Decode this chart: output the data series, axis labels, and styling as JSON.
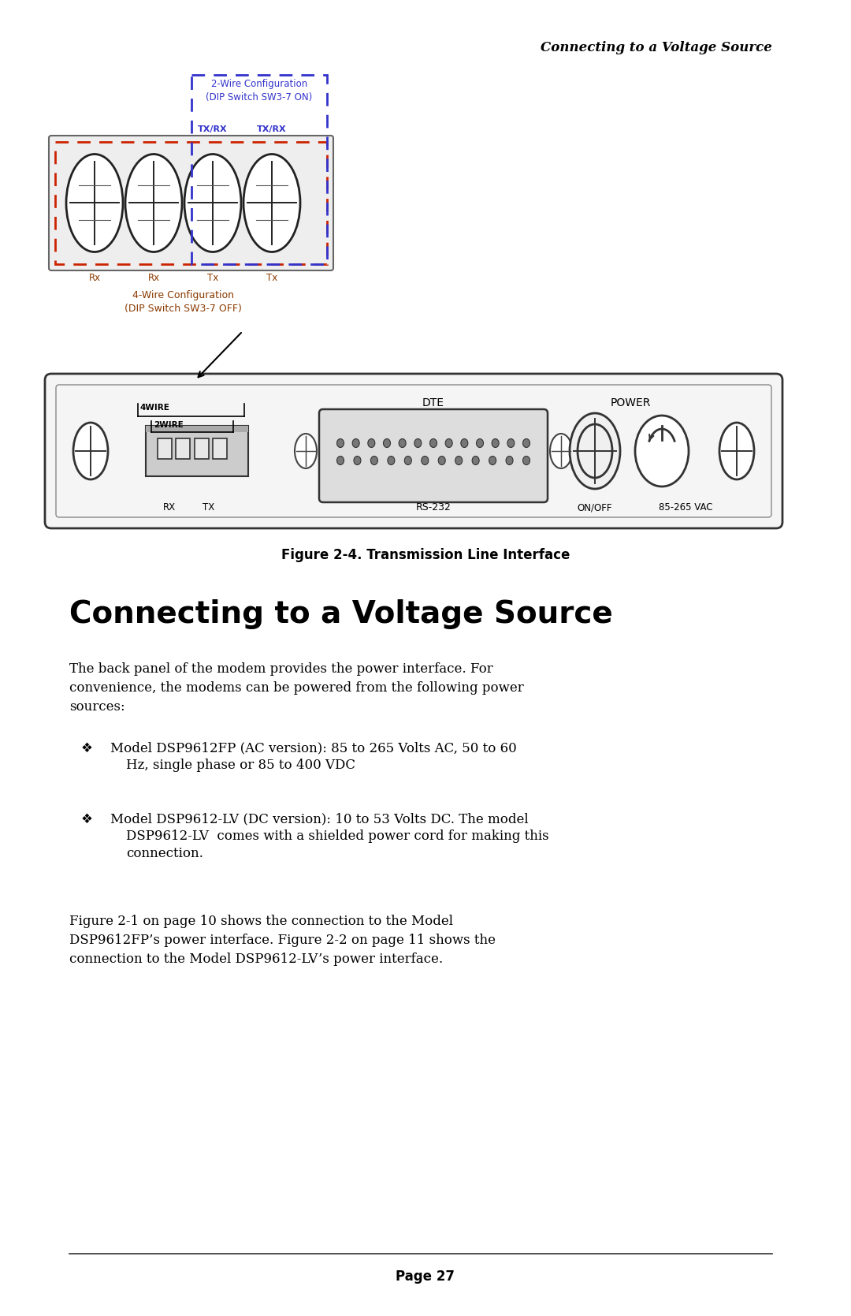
{
  "page_title": "Connecting to a Voltage Source",
  "figure_caption": "Figure 2-4. Transmission Line Interface",
  "section_heading": "Connecting to a Voltage Source",
  "body_text_1": "The back panel of the modem provides the power interface. For\nconvenience, the modems can be powered from the following power\nsources:",
  "bullet_1_line1": "Model DSP9612FP (AC version): 85 to 265 Volts AC, 50 to 60",
  "bullet_1_line2": "Hz, single phase or 85 to 400 VDC",
  "bullet_2_line1": "Model DSP9612-LV (DC version): 10 to 53 Volts DC. The model",
  "bullet_2_line2": "DSP9612-LV  comes with a shielded power cord for making this",
  "bullet_2_line3": "connection.",
  "body_text_2": "Figure 2-1 on page 10 shows the connection to the Model\nDSP9612FP’s power interface. Figure 2-2 on page 11 shows the\nconnection to the Model DSP9612-LV’s power interface.",
  "page_number": "Page 27",
  "bg_color": "#ffffff",
  "text_color": "#000000",
  "blue_color": "#3333cc",
  "red_color": "#cc2200",
  "brown_color": "#8B3A00"
}
